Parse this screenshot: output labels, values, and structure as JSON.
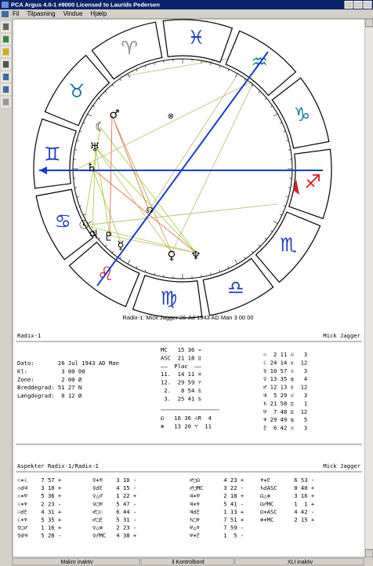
{
  "window": {
    "title": "PCA Argus 4.0-1  #9000  Licensed to Laurids Pedersen",
    "menu": [
      "Fil",
      "Tilpasning",
      "Vindue",
      "Hjælp"
    ]
  },
  "wheel": {
    "signs": [
      "♈",
      "♉",
      "♊",
      "♋",
      "♌",
      "♍",
      "♎",
      "♏",
      "♐",
      "♑",
      "♒",
      "♓"
    ],
    "planets": [
      "☾",
      "♂",
      "♅",
      "♄",
      "☉",
      "♃",
      "♇",
      "☿",
      "♀",
      "♆",
      "☊",
      "⊗"
    ]
  },
  "caption": "Radix-1: Mick Jagger 26 Jul 1943 AD Man  3 00 00",
  "radix": {
    "title": "Radix-1",
    "name": "Mick Jagger",
    "birth": [
      "Dato:       26 Jul 1943 AD Man",
      "Kl:          3 00 00",
      "Zone:        2 00 Ø",
      "Breddegrad: 51 27 N",
      "Længdegrad:  0 12 Ø"
    ],
    "houses": [
      "MC   15 36 ♒",
      "ASC  21 18 ♊",
      "——  Plac  ——",
      "11.  14 11 ♓",
      "12.  29 59 ♈",
      " 2.   8 54 ♋",
      " 3.  25 41 ♋",
      "☊   16 36 ♌R  4",
      "⊗   13 20 ♈  11"
    ],
    "planets": [
      "☉  2 11 ♌   3",
      "☾ 24 14 ♉  12",
      "☿ 10 57 ♌   3",
      "♀ 13 35 ♍   4",
      "♂ 12 13 ♉  12",
      "♃  5 29 ♌   3",
      "♄ 21 58 ♊   1",
      "♅  7 48 ♊  12",
      "♆ 29 49 ♍   5",
      "♇  6 42 ♌   3"
    ]
  },
  "aspects": {
    "title": "Aspekter Radix-1/Radix-1",
    "name": "Mick Jagger",
    "columns": [
      [
        "☉✶☾    7 57 +",
        "☉☌♃    3 18 +",
        "☉✶♅    5 36 +",
        "☉✶♆    2 23 -",
        "☉☌♇    4 31 +",
        "☾✶♆    5 35 +",
        "☿□♂    1 16 +",
        "☿☌♃    5 28 -"
      ],
      [
        "☿✶♅    3 10 -",
        "☿☌♇    4 15 -",
        "♀△♂    1 22 +",
        "♀□♅    5 47 -",
        "♂□☉    6 44 -",
        "♂□♇    5 31 -",
        "♀△⊗    2 23 -",
        "♀☍MC   4 38 +"
      ],
      [
        "♂□☊       4 23 +",
        "♂□MC      3 22 -",
        "♃✶♅       2 18 +",
        "♃✶♆       5 41 -",
        "♃☌♇       1 13 +",
        "♄□♆       7 51 +",
        "♅△♆       7 59 -",
        "♅✶♇       1  5 -"
      ],
      [
        "♆✶♇       6 53 -",
        "♄☌ASC     0 40 +",
        "☊△⊗       3 16 +",
        "☊☍MC      1  1 +",
        "☊✶ASC     4 42 -",
        "⊗✶MC      2 15 +"
      ]
    ]
  },
  "status": [
    "Makro inaktiv",
    "il Kontrolbord",
    "XLI inaktiv"
  ]
}
